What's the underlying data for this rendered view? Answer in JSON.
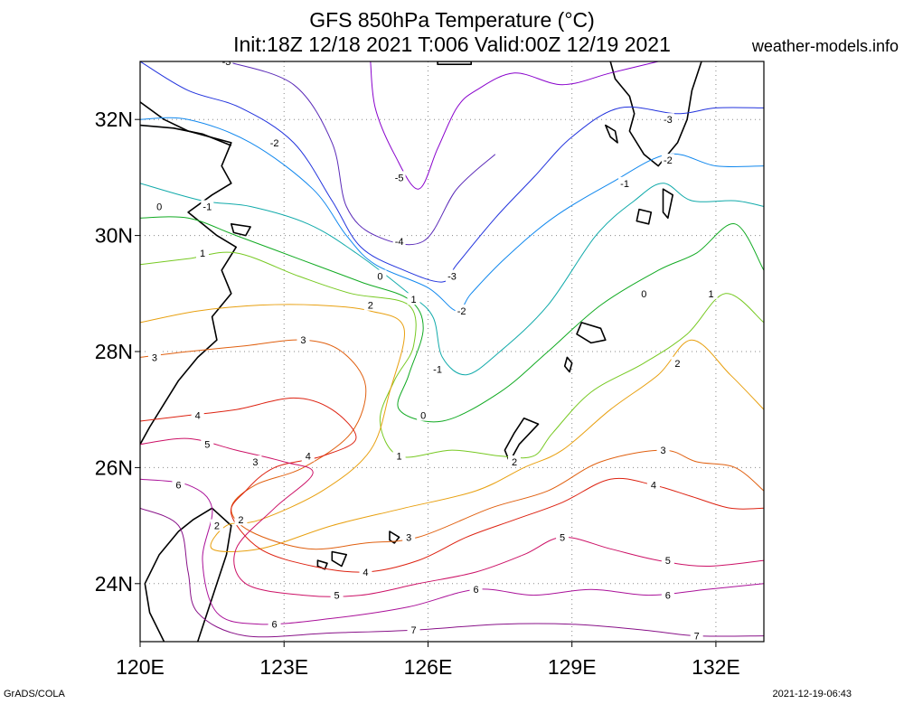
{
  "title": "GFS 850hPa Temperature (°C)",
  "subtitle": "Init:18Z 12/18 2021 T:006 Valid:00Z 12/19 2021",
  "source": "weather-models.info",
  "footer_left": "GrADS/COLA",
  "footer_right": "2021-12-19-06:43",
  "map": {
    "lon_range": [
      120,
      133
    ],
    "lat_range": [
      23,
      33
    ],
    "lat_ticks": [
      {
        "value": 24,
        "label": "24N"
      },
      {
        "value": 26,
        "label": "26N"
      },
      {
        "value": 28,
        "label": "28N"
      },
      {
        "value": 30,
        "label": "30N"
      },
      {
        "value": 32,
        "label": "32N"
      }
    ],
    "lon_ticks": [
      {
        "value": 120,
        "label": "120E"
      },
      {
        "value": 123,
        "label": "123E"
      },
      {
        "value": 126,
        "label": "126E"
      },
      {
        "value": 129,
        "label": "129E"
      },
      {
        "value": 132,
        "label": "132E"
      }
    ],
    "grid": "dotted",
    "coastline_color": "#000000"
  },
  "contours": [
    {
      "level": -5,
      "color": "#8800cc",
      "labels": [
        {
          "text": "-5",
          "lon": 125.4,
          "lat": 31.0
        }
      ],
      "path": [
        [
          124.8,
          33.0
        ],
        [
          124.9,
          32.2
        ],
        [
          125.3,
          31.4
        ],
        [
          125.8,
          30.8
        ],
        [
          126.2,
          31.5
        ],
        [
          126.6,
          32.2
        ],
        [
          127.0,
          32.5
        ],
        [
          127.8,
          32.8
        ],
        [
          128.8,
          32.6
        ],
        [
          129.8,
          32.8
        ],
        [
          130.8,
          33.0
        ]
      ]
    },
    {
      "level": -4,
      "color": "#5a2ab8",
      "labels": [
        {
          "text": "-4",
          "lon": 125.4,
          "lat": 29.9
        }
      ],
      "path": [
        [
          121.8,
          33.0
        ],
        [
          123.2,
          32.6
        ],
        [
          124.0,
          31.6
        ],
        [
          124.3,
          30.5
        ],
        [
          124.9,
          30.0
        ],
        [
          125.9,
          29.9
        ],
        [
          126.6,
          30.8
        ],
        [
          127.4,
          31.4
        ]
      ]
    },
    {
      "level": -3,
      "color": "#2233dd",
      "labels": [
        {
          "text": "-3",
          "lon": 121.8,
          "lat": 33.0
        },
        {
          "text": "-3",
          "lon": 126.5,
          "lat": 29.3
        },
        {
          "text": "-3",
          "lon": 131.0,
          "lat": 32.0
        }
      ],
      "path": [
        [
          120.0,
          33.0
        ],
        [
          121.0,
          32.5
        ],
        [
          122.1,
          32.2
        ],
        [
          123.2,
          31.6
        ],
        [
          124.0,
          30.6
        ],
        [
          124.6,
          29.8
        ],
        [
          125.5,
          29.4
        ],
        [
          126.3,
          29.2
        ],
        [
          126.6,
          29.5
        ],
        [
          127.4,
          30.3
        ],
        [
          128.2,
          31.0
        ],
        [
          129.0,
          31.7
        ],
        [
          130.0,
          32.2
        ],
        [
          131.2,
          32.1
        ],
        [
          132.0,
          32.2
        ],
        [
          133.0,
          32.2
        ]
      ]
    },
    {
      "level": -2,
      "color": "#1188ee",
      "labels": [
        {
          "text": "-2",
          "lon": 122.8,
          "lat": 31.6
        },
        {
          "text": "-2",
          "lon": 126.7,
          "lat": 28.7
        },
        {
          "text": "-2",
          "lon": 131.0,
          "lat": 31.3
        }
      ],
      "path": [
        [
          120.0,
          32.0
        ],
        [
          121.0,
          32.0
        ],
        [
          122.3,
          31.6
        ],
        [
          123.6,
          30.8
        ],
        [
          124.3,
          30.0
        ],
        [
          124.9,
          29.5
        ],
        [
          126.0,
          29.1
        ],
        [
          126.6,
          28.7
        ],
        [
          126.9,
          29.0
        ],
        [
          127.6,
          29.6
        ],
        [
          128.6,
          30.3
        ],
        [
          129.8,
          30.9
        ],
        [
          131.0,
          31.4
        ],
        [
          132.0,
          31.2
        ],
        [
          133.0,
          31.2
        ]
      ]
    },
    {
      "level": -1,
      "color": "#11aaaa",
      "labels": [
        {
          "text": "-1",
          "lon": 121.4,
          "lat": 30.5
        },
        {
          "text": "-1",
          "lon": 126.2,
          "lat": 27.7
        },
        {
          "text": "-1",
          "lon": 130.1,
          "lat": 30.9
        }
      ],
      "path": [
        [
          120.0,
          30.9
        ],
        [
          121.3,
          30.6
        ],
        [
          122.3,
          30.5
        ],
        [
          123.5,
          30.2
        ],
        [
          124.5,
          29.7
        ],
        [
          125.6,
          29.0
        ],
        [
          126.1,
          28.6
        ],
        [
          126.3,
          27.9
        ],
        [
          126.8,
          27.6
        ],
        [
          127.5,
          28.0
        ],
        [
          128.5,
          28.8
        ],
        [
          129.5,
          30.0
        ],
        [
          130.3,
          30.6
        ],
        [
          130.9,
          30.9
        ],
        [
          131.5,
          30.6
        ],
        [
          132.4,
          30.6
        ],
        [
          133.0,
          30.5
        ]
      ]
    },
    {
      "level": 0,
      "color": "#11aa22",
      "labels": [
        {
          "text": "0",
          "lon": 120.4,
          "lat": 30.5
        },
        {
          "text": "0",
          "lon": 125.0,
          "lat": 29.3
        },
        {
          "text": "0",
          "lon": 125.9,
          "lat": 26.9
        },
        {
          "text": "0",
          "lon": 130.5,
          "lat": 29.0
        }
      ],
      "path": [
        [
          120.0,
          30.3
        ],
        [
          121.0,
          30.3
        ],
        [
          122.0,
          30.0
        ],
        [
          123.3,
          29.6
        ],
        [
          124.6,
          29.2
        ],
        [
          125.6,
          28.9
        ],
        [
          125.9,
          28.4
        ],
        [
          125.6,
          27.6
        ],
        [
          125.4,
          27.0
        ],
        [
          126.3,
          26.8
        ],
        [
          127.5,
          27.3
        ],
        [
          128.5,
          28.0
        ],
        [
          129.6,
          28.8
        ],
        [
          130.8,
          29.4
        ],
        [
          131.6,
          29.7
        ],
        [
          132.4,
          30.2
        ],
        [
          133.0,
          29.4
        ]
      ]
    },
    {
      "level": 1,
      "color": "#77c922",
      "labels": [
        {
          "text": "1",
          "lon": 121.3,
          "lat": 29.7
        },
        {
          "text": "1",
          "lon": 125.7,
          "lat": 28.9
        },
        {
          "text": "1",
          "lon": 125.4,
          "lat": 26.2
        },
        {
          "text": "1",
          "lon": 131.9,
          "lat": 29.0
        }
      ],
      "path": [
        [
          120.0,
          29.5
        ],
        [
          121.0,
          29.6
        ],
        [
          122.0,
          29.7
        ],
        [
          123.3,
          29.3
        ],
        [
          124.4,
          29.0
        ],
        [
          125.6,
          28.8
        ],
        [
          125.7,
          28.1
        ],
        [
          125.3,
          27.5
        ],
        [
          125.0,
          26.8
        ],
        [
          125.4,
          26.2
        ],
        [
          126.5,
          26.3
        ],
        [
          127.5,
          26.2
        ],
        [
          128.2,
          26.2
        ],
        [
          128.6,
          26.6
        ],
        [
          129.4,
          27.3
        ],
        [
          130.5,
          27.8
        ],
        [
          131.4,
          28.3
        ],
        [
          132.2,
          29.0
        ],
        [
          133.0,
          28.5
        ]
      ]
    },
    {
      "level": 2,
      "color": "#e8a010",
      "labels": [
        {
          "text": "2",
          "lon": 124.8,
          "lat": 28.8
        },
        {
          "text": "2",
          "lon": 122.1,
          "lat": 25.1
        },
        {
          "text": "2",
          "lon": 121.6,
          "lat": 25.0
        },
        {
          "text": "2",
          "lon": 127.8,
          "lat": 26.1
        },
        {
          "text": "2",
          "lon": 131.2,
          "lat": 27.8
        }
      ],
      "path": [
        [
          120.0,
          28.5
        ],
        [
          121.2,
          28.7
        ],
        [
          122.5,
          28.8
        ],
        [
          123.7,
          28.8
        ],
        [
          124.8,
          28.7
        ],
        [
          125.5,
          28.4
        ],
        [
          125.2,
          27.3
        ],
        [
          124.8,
          26.3
        ],
        [
          123.8,
          25.6
        ],
        [
          122.5,
          25.1
        ],
        [
          121.8,
          25.0
        ],
        [
          121.5,
          24.6
        ],
        [
          122.5,
          24.6
        ],
        [
          124.0,
          25.0
        ],
        [
          125.5,
          25.3
        ],
        [
          127.0,
          25.6
        ],
        [
          128.0,
          26.0
        ],
        [
          128.8,
          26.3
        ],
        [
          129.8,
          27.0
        ],
        [
          130.8,
          27.6
        ],
        [
          131.5,
          28.2
        ],
        [
          132.3,
          27.6
        ],
        [
          133.0,
          27.0
        ]
      ]
    },
    {
      "level": 3,
      "color": "#e06010",
      "labels": [
        {
          "text": "3",
          "lon": 120.3,
          "lat": 27.9
        },
        {
          "text": "3",
          "lon": 123.4,
          "lat": 28.2
        },
        {
          "text": "3",
          "lon": 122.4,
          "lat": 26.1
        },
        {
          "text": "3",
          "lon": 125.6,
          "lat": 24.8
        },
        {
          "text": "3",
          "lon": 130.9,
          "lat": 26.3
        }
      ],
      "path": [
        [
          120.0,
          27.9
        ],
        [
          121.0,
          28.0
        ],
        [
          122.2,
          28.1
        ],
        [
          123.4,
          28.2
        ],
        [
          124.2,
          28.0
        ],
        [
          124.7,
          27.4
        ],
        [
          124.4,
          26.6
        ],
        [
          123.4,
          26.0
        ],
        [
          122.4,
          25.7
        ],
        [
          121.9,
          25.3
        ],
        [
          122.3,
          24.9
        ],
        [
          123.5,
          24.6
        ],
        [
          124.7,
          24.7
        ],
        [
          125.8,
          24.8
        ],
        [
          127.3,
          25.3
        ],
        [
          128.5,
          25.6
        ],
        [
          129.6,
          26.1
        ],
        [
          130.9,
          26.3
        ],
        [
          131.6,
          26.1
        ],
        [
          132.4,
          26.0
        ],
        [
          133.0,
          25.6
        ]
      ]
    },
    {
      "level": 4,
      "color": "#dd2211",
      "labels": [
        {
          "text": "4",
          "lon": 121.2,
          "lat": 26.9
        },
        {
          "text": "4",
          "lon": 123.5,
          "lat": 26.2
        },
        {
          "text": "4",
          "lon": 124.7,
          "lat": 24.2
        },
        {
          "text": "4",
          "lon": 130.7,
          "lat": 25.7
        }
      ],
      "path": [
        [
          120.0,
          26.8
        ],
        [
          121.0,
          26.9
        ],
        [
          122.0,
          27.0
        ],
        [
          123.2,
          27.2
        ],
        [
          124.0,
          27.0
        ],
        [
          124.5,
          26.5
        ],
        [
          123.8,
          26.2
        ],
        [
          122.8,
          26.0
        ],
        [
          122.2,
          25.6
        ],
        [
          121.9,
          25.2
        ],
        [
          122.5,
          24.6
        ],
        [
          123.6,
          24.3
        ],
        [
          124.7,
          24.2
        ],
        [
          125.8,
          24.4
        ],
        [
          126.8,
          24.8
        ],
        [
          127.8,
          25.1
        ],
        [
          128.8,
          25.4
        ],
        [
          129.8,
          25.8
        ],
        [
          130.7,
          25.7
        ],
        [
          131.5,
          25.5
        ],
        [
          132.3,
          25.3
        ],
        [
          133.0,
          25.3
        ]
      ]
    },
    {
      "level": 5,
      "color": "#cc1166",
      "labels": [
        {
          "text": "5",
          "lon": 121.4,
          "lat": 26.4
        },
        {
          "text": "5",
          "lon": 124.1,
          "lat": 23.8
        },
        {
          "text": "5",
          "lon": 128.8,
          "lat": 24.8
        },
        {
          "text": "5",
          "lon": 131.0,
          "lat": 24.4
        }
      ],
      "path": [
        [
          120.0,
          26.4
        ],
        [
          121.0,
          26.5
        ],
        [
          122.0,
          26.3
        ],
        [
          123.0,
          26.1
        ],
        [
          123.6,
          25.9
        ],
        [
          122.8,
          25.3
        ],
        [
          122.0,
          24.6
        ],
        [
          122.2,
          24.0
        ],
        [
          123.4,
          23.8
        ],
        [
          124.6,
          23.8
        ],
        [
          125.8,
          24.0
        ],
        [
          127.0,
          24.2
        ],
        [
          128.0,
          24.5
        ],
        [
          128.8,
          24.8
        ],
        [
          129.8,
          24.6
        ],
        [
          130.8,
          24.4
        ],
        [
          131.8,
          24.3
        ],
        [
          133.0,
          24.4
        ]
      ]
    },
    {
      "level": 6,
      "color": "#aa1199",
      "labels": [
        {
          "text": "6",
          "lon": 120.8,
          "lat": 25.7
        },
        {
          "text": "6",
          "lon": 122.8,
          "lat": 23.3
        },
        {
          "text": "6",
          "lon": 127.0,
          "lat": 23.9
        },
        {
          "text": "6",
          "lon": 131.0,
          "lat": 23.8
        }
      ],
      "path": [
        [
          120.0,
          25.8
        ],
        [
          121.0,
          25.7
        ],
        [
          121.5,
          25.3
        ],
        [
          121.3,
          24.4
        ],
        [
          121.6,
          23.5
        ],
        [
          122.5,
          23.3
        ],
        [
          124.0,
          23.4
        ],
        [
          125.6,
          23.6
        ],
        [
          127.0,
          23.9
        ],
        [
          128.2,
          23.8
        ],
        [
          129.4,
          23.9
        ],
        [
          130.6,
          23.8
        ],
        [
          131.8,
          23.9
        ],
        [
          133.0,
          24.0
        ]
      ]
    },
    {
      "level": 7,
      "color": "#881188",
      "labels": [
        {
          "text": "7",
          "lon": 125.7,
          "lat": 23.2
        },
        {
          "text": "7",
          "lon": 131.6,
          "lat": 23.1
        }
      ],
      "path": [
        [
          120.0,
          25.3
        ],
        [
          120.8,
          25.0
        ],
        [
          121.0,
          24.2
        ],
        [
          121.2,
          23.5
        ],
        [
          122.2,
          23.1
        ],
        [
          124.0,
          23.15
        ],
        [
          125.7,
          23.2
        ],
        [
          127.5,
          23.3
        ],
        [
          129.0,
          23.3
        ],
        [
          130.5,
          23.2
        ],
        [
          131.6,
          23.1
        ],
        [
          133.0,
          23.1
        ]
      ]
    }
  ]
}
